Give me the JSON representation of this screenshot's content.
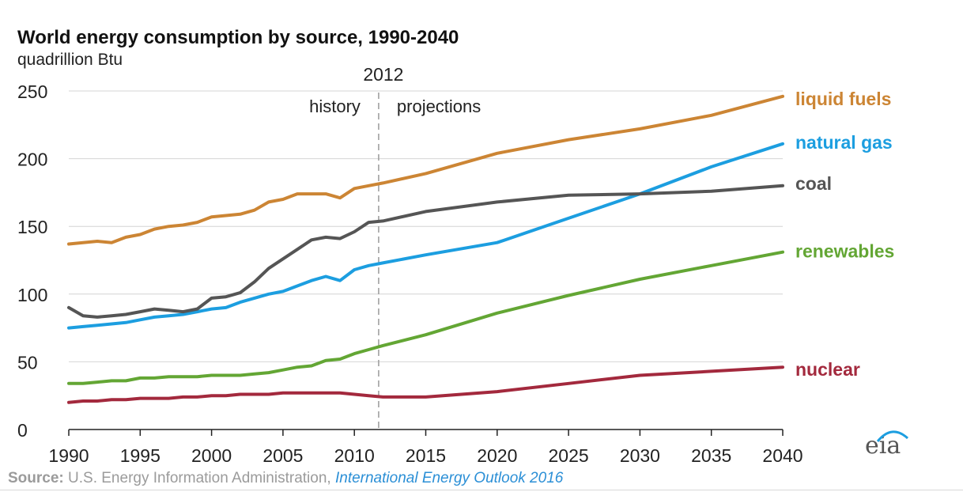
{
  "title": "World energy consumption by source, 1990-2040",
  "subtitle": "quadrillion Btu",
  "footer": {
    "source_label": "Source:",
    "source_text": " U.S. Energy Information Administration, ",
    "source_link": "International Energy Outlook 2016"
  },
  "logo": {
    "text": "eia"
  },
  "chart_data": {
    "type": "line",
    "title": "World energy consumption by source, 1990-2040",
    "ylabel": "quadrillion Btu",
    "xlim": [
      1990,
      2040
    ],
    "ylim": [
      0,
      250
    ],
    "x_ticks": [
      1990,
      1995,
      2000,
      2005,
      2010,
      2015,
      2020,
      2025,
      2030,
      2035,
      2040
    ],
    "y_ticks": [
      0,
      50,
      100,
      150,
      200,
      250
    ],
    "grid": "horizontal",
    "legend": "labels at right end of lines",
    "annotations": {
      "divider_year": 2012,
      "divider_label": "2012",
      "left_label": "history",
      "right_label": "projections"
    },
    "series": [
      {
        "name": "liquid fuels",
        "color": "#cc8534",
        "x": [
          1990,
          1991,
          1992,
          1993,
          1994,
          1995,
          1996,
          1997,
          1998,
          1999,
          2000,
          2001,
          2002,
          2003,
          2004,
          2005,
          2006,
          2007,
          2008,
          2009,
          2010,
          2011,
          2012,
          2015,
          2020,
          2025,
          2030,
          2035,
          2040
        ],
        "values": [
          137,
          138,
          139,
          138,
          142,
          144,
          148,
          150,
          151,
          153,
          157,
          158,
          159,
          162,
          168,
          170,
          174,
          174,
          174,
          171,
          178,
          180,
          182,
          189,
          204,
          214,
          222,
          232,
          246
        ]
      },
      {
        "name": "natural gas",
        "color": "#1c9ee0",
        "x": [
          1990,
          1991,
          1992,
          1993,
          1994,
          1995,
          1996,
          1997,
          1998,
          1999,
          2000,
          2001,
          2002,
          2003,
          2004,
          2005,
          2006,
          2007,
          2008,
          2009,
          2010,
          2011,
          2012,
          2015,
          2020,
          2025,
          2030,
          2035,
          2040
        ],
        "values": [
          75,
          76,
          77,
          78,
          79,
          81,
          83,
          84,
          85,
          87,
          89,
          90,
          94,
          97,
          100,
          102,
          106,
          110,
          113,
          110,
          118,
          121,
          123,
          129,
          138,
          156,
          174,
          194,
          211
        ]
      },
      {
        "name": "coal",
        "color": "#555555",
        "x": [
          1990,
          1991,
          1992,
          1993,
          1994,
          1995,
          1996,
          1997,
          1998,
          1999,
          2000,
          2001,
          2002,
          2003,
          2004,
          2005,
          2006,
          2007,
          2008,
          2009,
          2010,
          2011,
          2012,
          2015,
          2020,
          2025,
          2030,
          2035,
          2040
        ],
        "values": [
          90,
          84,
          83,
          84,
          85,
          87,
          89,
          88,
          87,
          89,
          97,
          98,
          101,
          109,
          119,
          126,
          133,
          140,
          142,
          141,
          146,
          153,
          154,
          161,
          168,
          173,
          174,
          176,
          180
        ]
      },
      {
        "name": "renewables",
        "color": "#63a634",
        "x": [
          1990,
          1991,
          1992,
          1993,
          1994,
          1995,
          1996,
          1997,
          1998,
          1999,
          2000,
          2001,
          2002,
          2003,
          2004,
          2005,
          2006,
          2007,
          2008,
          2009,
          2010,
          2011,
          2012,
          2015,
          2020,
          2025,
          2030,
          2035,
          2040
        ],
        "values": [
          34,
          34,
          35,
          36,
          36,
          38,
          38,
          39,
          39,
          39,
          40,
          40,
          40,
          41,
          42,
          44,
          46,
          47,
          51,
          52,
          56,
          59,
          62,
          70,
          86,
          99,
          111,
          121,
          131
        ]
      },
      {
        "name": "nuclear",
        "color": "#a3293d",
        "x": [
          1990,
          1991,
          1992,
          1993,
          1994,
          1995,
          1996,
          1997,
          1998,
          1999,
          2000,
          2001,
          2002,
          2003,
          2004,
          2005,
          2006,
          2007,
          2008,
          2009,
          2010,
          2011,
          2012,
          2015,
          2020,
          2025,
          2030,
          2035,
          2040
        ],
        "values": [
          20,
          21,
          21,
          22,
          22,
          23,
          23,
          23,
          24,
          24,
          25,
          25,
          26,
          26,
          26,
          27,
          27,
          27,
          27,
          27,
          26,
          25,
          24,
          24,
          28,
          34,
          40,
          43,
          46
        ]
      }
    ]
  }
}
